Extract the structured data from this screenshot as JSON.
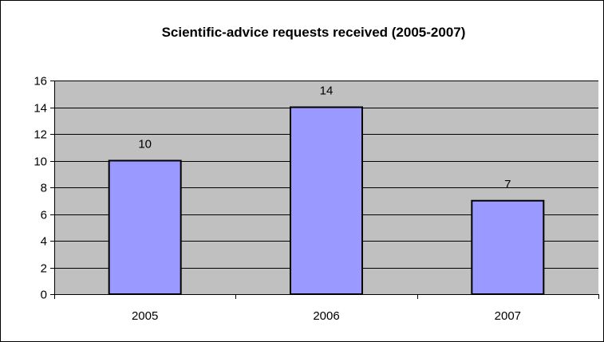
{
  "chart_data": {
    "type": "bar",
    "title": "Scientific-advice requests received (2005-2007)",
    "categories": [
      "2005",
      "2006",
      "2007"
    ],
    "values": [
      10,
      14,
      7
    ],
    "data_labels": [
      "10",
      "14",
      "7"
    ],
    "xlabel": "",
    "ylabel": "",
    "ylim": [
      0,
      16
    ],
    "yticks": [
      0,
      2,
      4,
      6,
      8,
      10,
      12,
      14,
      16
    ],
    "ytick_labels": [
      "0",
      "2",
      "4",
      "6",
      "8",
      "10",
      "12",
      "14",
      "16"
    ],
    "grid": true,
    "legend": "none",
    "colors": {
      "bar_fill": "#9999ff",
      "bar_stroke": "#000000",
      "plot_background": "#c0c0c0",
      "gridline": "#000000",
      "frame": "#000000"
    }
  }
}
